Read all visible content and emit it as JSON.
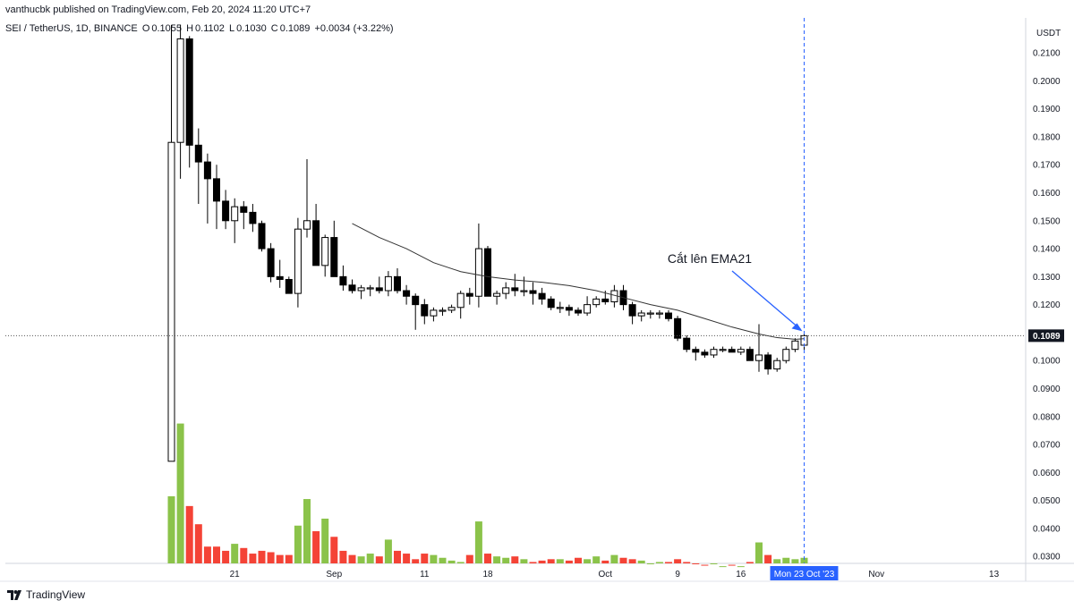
{
  "header": {
    "author_line": "vanthucbk published on TradingView.com, Feb 20, 2024 11:20 UTC+7",
    "symbol": "SEI / TetherUS, 1D, BINANCE",
    "ohlc": {
      "o_label": "O",
      "o": "0.1055",
      "h_label": "H",
      "h": "0.1102",
      "l_label": "L",
      "l": "0.1030",
      "c_label": "C",
      "c": "0.1089",
      "change": "+0.0034 (+3.22%)"
    }
  },
  "footer": {
    "brand": "TradingView"
  },
  "colors": {
    "up_volume": "#8bc34a",
    "down_volume": "#f44336",
    "candle_down": "#000000",
    "candle_up": "#ffffff",
    "ema": "#333333",
    "annotation_arrow": "#2962ff",
    "crosshair": "#2962ff"
  },
  "chart_data": {
    "type": "candlestick",
    "ylabel": "USDT",
    "y_axis_unit": "USDT",
    "ylim": [
      0.0275,
      0.2225
    ],
    "y_ticks": [
      "0.2100",
      "0.2000",
      "0.1900",
      "0.1800",
      "0.1700",
      "0.1600",
      "0.1500",
      "0.1400",
      "0.1300",
      "0.1200",
      "0.1000",
      "0.0900",
      "0.0800",
      "0.0700",
      "0.0600",
      "0.0500",
      "0.0400",
      "0.0300"
    ],
    "x_ticks": [
      {
        "label": "21",
        "index": 7
      },
      {
        "label": "Sep",
        "index": 18
      },
      {
        "label": "11",
        "index": 28
      },
      {
        "label": "18",
        "index": 35
      },
      {
        "label": "Oct",
        "index": 48
      },
      {
        "label": "9",
        "index": 56
      },
      {
        "label": "16",
        "index": 63
      },
      {
        "label": "Nov",
        "index": 78
      },
      {
        "label": "13",
        "index": 91
      }
    ],
    "crosshair": {
      "x_label": "Mon 23 Oct '23",
      "index": 70,
      "price": "0.1089"
    },
    "last_price": "0.1089",
    "annotation": "Cắt lên EMA21",
    "candles": [
      {
        "o": 0.064,
        "h": 0.22,
        "l": 0.064,
        "c": 0.178,
        "v": 0.0515
      },
      {
        "o": 0.178,
        "h": 0.22,
        "l": 0.165,
        "c": 0.215,
        "v": 0.0775
      },
      {
        "o": 0.215,
        "h": 0.216,
        "l": 0.169,
        "c": 0.177,
        "v": 0.048
      },
      {
        "o": 0.177,
        "h": 0.183,
        "l": 0.156,
        "c": 0.171,
        "v": 0.0415
      },
      {
        "o": 0.171,
        "h": 0.174,
        "l": 0.149,
        "c": 0.165,
        "v": 0.0335
      },
      {
        "o": 0.165,
        "h": 0.17,
        "l": 0.147,
        "c": 0.157,
        "v": 0.0335
      },
      {
        "o": 0.157,
        "h": 0.161,
        "l": 0.147,
        "c": 0.15,
        "v": 0.032
      },
      {
        "o": 0.15,
        "h": 0.158,
        "l": 0.142,
        "c": 0.155,
        "v": 0.0345
      },
      {
        "o": 0.155,
        "h": 0.157,
        "l": 0.147,
        "c": 0.153,
        "v": 0.033
      },
      {
        "o": 0.153,
        "h": 0.156,
        "l": 0.146,
        "c": 0.149,
        "v": 0.031
      },
      {
        "o": 0.149,
        "h": 0.15,
        "l": 0.139,
        "c": 0.14,
        "v": 0.032
      },
      {
        "o": 0.14,
        "h": 0.142,
        "l": 0.128,
        "c": 0.13,
        "v": 0.0315
      },
      {
        "o": 0.13,
        "h": 0.136,
        "l": 0.126,
        "c": 0.129,
        "v": 0.0305
      },
      {
        "o": 0.129,
        "h": 0.13,
        "l": 0.124,
        "c": 0.124,
        "v": 0.0305
      },
      {
        "o": 0.124,
        "h": 0.151,
        "l": 0.119,
        "c": 0.147,
        "v": 0.041
      },
      {
        "o": 0.147,
        "h": 0.172,
        "l": 0.144,
        "c": 0.15,
        "v": 0.0505
      },
      {
        "o": 0.15,
        "h": 0.156,
        "l": 0.135,
        "c": 0.134,
        "v": 0.039
      },
      {
        "o": 0.134,
        "h": 0.145,
        "l": 0.13,
        "c": 0.144,
        "v": 0.0435
      },
      {
        "o": 0.144,
        "h": 0.15,
        "l": 0.13,
        "c": 0.13,
        "v": 0.037
      },
      {
        "o": 0.13,
        "h": 0.134,
        "l": 0.125,
        "c": 0.127,
        "v": 0.032
      },
      {
        "o": 0.127,
        "h": 0.129,
        "l": 0.124,
        "c": 0.125,
        "v": 0.0305
      },
      {
        "o": 0.125,
        "h": 0.127,
        "l": 0.122,
        "c": 0.126,
        "v": 0.03
      },
      {
        "o": 0.126,
        "h": 0.127,
        "l": 0.123,
        "c": 0.126,
        "v": 0.031
      },
      {
        "o": 0.126,
        "h": 0.13,
        "l": 0.124,
        "c": 0.125,
        "v": 0.03
      },
      {
        "o": 0.125,
        "h": 0.132,
        "l": 0.123,
        "c": 0.13,
        "v": 0.036
      },
      {
        "o": 0.13,
        "h": 0.133,
        "l": 0.124,
        "c": 0.125,
        "v": 0.032
      },
      {
        "o": 0.125,
        "h": 0.127,
        "l": 0.12,
        "c": 0.123,
        "v": 0.031
      },
      {
        "o": 0.123,
        "h": 0.124,
        "l": 0.111,
        "c": 0.12,
        "v": 0.029
      },
      {
        "o": 0.12,
        "h": 0.122,
        "l": 0.113,
        "c": 0.116,
        "v": 0.031
      },
      {
        "o": 0.116,
        "h": 0.119,
        "l": 0.114,
        "c": 0.118,
        "v": 0.0305
      },
      {
        "o": 0.118,
        "h": 0.119,
        "l": 0.116,
        "c": 0.118,
        "v": 0.0295
      },
      {
        "o": 0.118,
        "h": 0.12,
        "l": 0.117,
        "c": 0.119,
        "v": 0.0285
      },
      {
        "o": 0.119,
        "h": 0.125,
        "l": 0.115,
        "c": 0.124,
        "v": 0.028
      },
      {
        "o": 0.124,
        "h": 0.126,
        "l": 0.12,
        "c": 0.123,
        "v": 0.0305
      },
      {
        "o": 0.123,
        "h": 0.149,
        "l": 0.119,
        "c": 0.14,
        "v": 0.0425
      },
      {
        "o": 0.14,
        "h": 0.141,
        "l": 0.123,
        "c": 0.123,
        "v": 0.031
      },
      {
        "o": 0.123,
        "h": 0.125,
        "l": 0.12,
        "c": 0.124,
        "v": 0.03
      },
      {
        "o": 0.124,
        "h": 0.128,
        "l": 0.122,
        "c": 0.126,
        "v": 0.0295
      },
      {
        "o": 0.126,
        "h": 0.131,
        "l": 0.123,
        "c": 0.125,
        "v": 0.03
      },
      {
        "o": 0.125,
        "h": 0.13,
        "l": 0.123,
        "c": 0.125,
        "v": 0.029
      },
      {
        "o": 0.125,
        "h": 0.128,
        "l": 0.12,
        "c": 0.124,
        "v": 0.028
      },
      {
        "o": 0.124,
        "h": 0.126,
        "l": 0.12,
        "c": 0.122,
        "v": 0.0285
      },
      {
        "o": 0.122,
        "h": 0.123,
        "l": 0.118,
        "c": 0.119,
        "v": 0.029
      },
      {
        "o": 0.119,
        "h": 0.121,
        "l": 0.117,
        "c": 0.119,
        "v": 0.029
      },
      {
        "o": 0.119,
        "h": 0.12,
        "l": 0.116,
        "c": 0.118,
        "v": 0.0285
      },
      {
        "o": 0.118,
        "h": 0.119,
        "l": 0.116,
        "c": 0.117,
        "v": 0.0295
      },
      {
        "o": 0.117,
        "h": 0.123,
        "l": 0.116,
        "c": 0.12,
        "v": 0.029
      },
      {
        "o": 0.12,
        "h": 0.123,
        "l": 0.119,
        "c": 0.122,
        "v": 0.03
      },
      {
        "o": 0.122,
        "h": 0.125,
        "l": 0.12,
        "c": 0.121,
        "v": 0.0285
      },
      {
        "o": 0.121,
        "h": 0.127,
        "l": 0.119,
        "c": 0.125,
        "v": 0.0305
      },
      {
        "o": 0.125,
        "h": 0.127,
        "l": 0.118,
        "c": 0.12,
        "v": 0.0295
      },
      {
        "o": 0.12,
        "h": 0.121,
        "l": 0.113,
        "c": 0.116,
        "v": 0.029
      },
      {
        "o": 0.116,
        "h": 0.118,
        "l": 0.114,
        "c": 0.117,
        "v": 0.0285
      },
      {
        "o": 0.117,
        "h": 0.118,
        "l": 0.115,
        "c": 0.117,
        "v": 0.0275
      },
      {
        "o": 0.117,
        "h": 0.118,
        "l": 0.115,
        "c": 0.117,
        "v": 0.028
      },
      {
        "o": 0.117,
        "h": 0.118,
        "l": 0.114,
        "c": 0.115,
        "v": 0.028
      },
      {
        "o": 0.115,
        "h": 0.116,
        "l": 0.107,
        "c": 0.108,
        "v": 0.029
      },
      {
        "o": 0.108,
        "h": 0.109,
        "l": 0.103,
        "c": 0.104,
        "v": 0.028
      },
      {
        "o": 0.104,
        "h": 0.105,
        "l": 0.1,
        "c": 0.103,
        "v": 0.0275
      },
      {
        "o": 0.103,
        "h": 0.104,
        "l": 0.101,
        "c": 0.102,
        "v": 0.027
      },
      {
        "o": 0.102,
        "h": 0.105,
        "l": 0.101,
        "c": 0.104,
        "v": 0.0275
      },
      {
        "o": 0.104,
        "h": 0.105,
        "l": 0.103,
        "c": 0.104,
        "v": 0.0265
      },
      {
        "o": 0.104,
        "h": 0.105,
        "l": 0.103,
        "c": 0.103,
        "v": 0.027
      },
      {
        "o": 0.103,
        "h": 0.105,
        "l": 0.102,
        "c": 0.104,
        "v": 0.0265
      },
      {
        "o": 0.104,
        "h": 0.105,
        "l": 0.1,
        "c": 0.1,
        "v": 0.028
      },
      {
        "o": 0.1,
        "h": 0.113,
        "l": 0.096,
        "c": 0.102,
        "v": 0.035
      },
      {
        "o": 0.102,
        "h": 0.103,
        "l": 0.095,
        "c": 0.097,
        "v": 0.0305
      },
      {
        "o": 0.097,
        "h": 0.101,
        "l": 0.096,
        "c": 0.1,
        "v": 0.029
      },
      {
        "o": 0.1,
        "h": 0.105,
        "l": 0.099,
        "c": 0.104,
        "v": 0.0295
      },
      {
        "o": 0.104,
        "h": 0.108,
        "l": 0.103,
        "c": 0.107,
        "v": 0.029
      },
      {
        "o": 0.1055,
        "h": 0.1102,
        "l": 0.103,
        "c": 0.1089,
        "v": 0.0295
      }
    ],
    "ema21": [
      {
        "index": 20,
        "value": 0.149
      },
      {
        "index": 23,
        "value": 0.144
      },
      {
        "index": 26,
        "value": 0.14
      },
      {
        "index": 29,
        "value": 0.135
      },
      {
        "index": 32,
        "value": 0.1318
      },
      {
        "index": 35,
        "value": 0.13
      },
      {
        "index": 38,
        "value": 0.1288
      },
      {
        "index": 41,
        "value": 0.128
      },
      {
        "index": 44,
        "value": 0.1268
      },
      {
        "index": 47,
        "value": 0.125
      },
      {
        "index": 50,
        "value": 0.1225
      },
      {
        "index": 53,
        "value": 0.12
      },
      {
        "index": 56,
        "value": 0.118
      },
      {
        "index": 59,
        "value": 0.115
      },
      {
        "index": 62,
        "value": 0.112
      },
      {
        "index": 65,
        "value": 0.1095
      },
      {
        "index": 67,
        "value": 0.1082
      },
      {
        "index": 69,
        "value": 0.1076
      },
      {
        "index": 70,
        "value": 0.1078
      }
    ]
  }
}
